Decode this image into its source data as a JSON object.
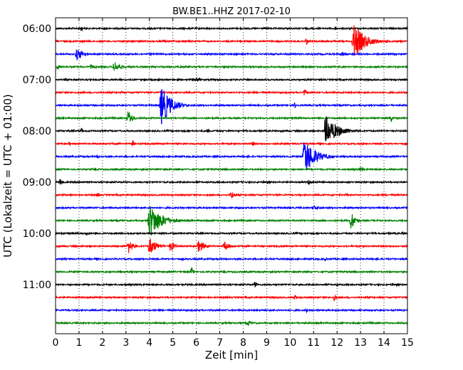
{
  "chart_data": {
    "type": "line",
    "title": "BW.BE1..HHZ 2017-02-10",
    "xlabel": "Zeit  [min]",
    "ylabel": "UTC (Lokalzeit = UTC + 01:00)",
    "xlim": [
      0,
      15
    ],
    "x_ticks": [
      "0",
      "1",
      "2",
      "3",
      "4",
      "5",
      "6",
      "7",
      "8",
      "9",
      "10",
      "11",
      "12",
      "13",
      "14",
      "15"
    ],
    "y_tick_labels": [
      "06:00",
      "07:00",
      "08:00",
      "09:00",
      "10:00",
      "11:00"
    ],
    "y_tick_trace_index": [
      0,
      4,
      8,
      12,
      16,
      20
    ],
    "trace_start": "06:00",
    "trace_interval_min": 15,
    "grid": "vertical dotted",
    "colors": [
      "#000000",
      "#ff0000",
      "#0000ff",
      "#008000"
    ],
    "traces": [
      {
        "start": "06:00",
        "color": "#000000",
        "events": [
          {
            "t": 1.1,
            "amp": 5,
            "dur": 0.15
          },
          {
            "t": 11.9,
            "amp": 4,
            "dur": 0.2
          }
        ]
      },
      {
        "start": "06:15",
        "color": "#ff0000",
        "events": [
          {
            "t": 12.7,
            "amp": 26,
            "dur": 1.4
          },
          {
            "t": 10.7,
            "amp": 6,
            "dur": 0.15
          },
          {
            "t": 4.6,
            "amp": 3,
            "dur": 0.1
          }
        ]
      },
      {
        "start": "06:30",
        "color": "#0000ff",
        "events": [
          {
            "t": 0.9,
            "amp": 9,
            "dur": 0.9
          },
          {
            "t": 12.2,
            "amp": 4,
            "dur": 0.6
          }
        ]
      },
      {
        "start": "06:45",
        "color": "#008000",
        "events": [
          {
            "t": 0.1,
            "amp": 5,
            "dur": 0.2
          },
          {
            "t": 2.5,
            "amp": 9,
            "dur": 0.7
          },
          {
            "t": 1.5,
            "amp": 3,
            "dur": 0.8
          }
        ]
      },
      {
        "start": "07:00",
        "color": "#000000",
        "events": [
          {
            "t": 6.0,
            "amp": 4,
            "dur": 0.5
          },
          {
            "t": 3.8,
            "amp": 3,
            "dur": 0.3
          }
        ]
      },
      {
        "start": "07:15",
        "color": "#ff0000",
        "events": [
          {
            "t": 10.6,
            "amp": 5,
            "dur": 0.35
          },
          {
            "t": 2.8,
            "amp": 2,
            "dur": 0.6
          }
        ]
      },
      {
        "start": "07:30",
        "color": "#0000ff",
        "events": [
          {
            "t": 4.5,
            "amp": 30,
            "dur": 1.2
          },
          {
            "t": 10.2,
            "amp": 4,
            "dur": 0.3
          }
        ]
      },
      {
        "start": "07:45",
        "color": "#008000",
        "events": [
          {
            "t": 3.1,
            "amp": 12,
            "dur": 0.5
          },
          {
            "t": 14.3,
            "amp": 7,
            "dur": 0.2
          }
        ]
      },
      {
        "start": "08:00",
        "color": "#000000",
        "events": [
          {
            "t": 11.5,
            "amp": 22,
            "dur": 1.5
          },
          {
            "t": 1.1,
            "amp": 5,
            "dur": 0.2
          },
          {
            "t": 6.5,
            "amp": 4,
            "dur": 0.2
          }
        ]
      },
      {
        "start": "08:15",
        "color": "#ff0000",
        "events": [
          {
            "t": 3.3,
            "amp": 5,
            "dur": 0.2
          },
          {
            "t": 8.4,
            "amp": 4,
            "dur": 0.2
          },
          {
            "t": 0.6,
            "amp": 3,
            "dur": 0.2
          }
        ]
      },
      {
        "start": "08:30",
        "color": "#0000ff",
        "events": [
          {
            "t": 10.6,
            "amp": 28,
            "dur": 1.3
          },
          {
            "t": 1.8,
            "amp": 3,
            "dur": 0.2
          }
        ]
      },
      {
        "start": "08:45",
        "color": "#008000",
        "events": [
          {
            "t": 13.0,
            "amp": 4,
            "dur": 0.4
          }
        ]
      },
      {
        "start": "09:00",
        "color": "#000000",
        "events": [
          {
            "t": 0.2,
            "amp": 6,
            "dur": 0.3
          },
          {
            "t": 10.8,
            "amp": 4,
            "dur": 0.3
          },
          {
            "t": 1.0,
            "amp": 3,
            "dur": 0.1
          }
        ]
      },
      {
        "start": "09:15",
        "color": "#ff0000",
        "events": [
          {
            "t": 7.5,
            "amp": 7,
            "dur": 0.3
          },
          {
            "t": 1.8,
            "amp": 3,
            "dur": 0.4
          },
          {
            "t": 12.4,
            "amp": 3,
            "dur": 0.2
          }
        ]
      },
      {
        "start": "09:30",
        "color": "#0000ff",
        "events": [
          {
            "t": 11.0,
            "amp": 4,
            "dur": 0.7
          },
          {
            "t": 7.8,
            "amp": 2,
            "dur": 0.4
          }
        ]
      },
      {
        "start": "09:45",
        "color": "#008000",
        "events": [
          {
            "t": 4.0,
            "amp": 26,
            "dur": 1.4
          },
          {
            "t": 12.6,
            "amp": 14,
            "dur": 0.5
          }
        ]
      },
      {
        "start": "10:00",
        "color": "#000000",
        "events": [
          {
            "t": 1.3,
            "amp": 3,
            "dur": 0.5
          },
          {
            "t": 14.8,
            "amp": 3,
            "dur": 0.2
          }
        ]
      },
      {
        "start": "10:15",
        "color": "#ff0000",
        "events": [
          {
            "t": 3.1,
            "amp": 11,
            "dur": 0.6
          },
          {
            "t": 4.0,
            "amp": 13,
            "dur": 0.9
          },
          {
            "t": 4.9,
            "amp": 9,
            "dur": 0.5
          },
          {
            "t": 6.1,
            "amp": 10,
            "dur": 0.7
          },
          {
            "t": 7.2,
            "amp": 8,
            "dur": 0.6
          }
        ]
      },
      {
        "start": "10:30",
        "color": "#0000ff",
        "events": [
          {
            "t": 11.5,
            "amp": 3,
            "dur": 0.2
          }
        ]
      },
      {
        "start": "10:45",
        "color": "#008000",
        "events": [
          {
            "t": 5.8,
            "amp": 7,
            "dur": 0.2
          },
          {
            "t": 3.2,
            "amp": 4,
            "dur": 0.2
          }
        ]
      },
      {
        "start": "11:00",
        "color": "#000000",
        "events": [
          {
            "t": 8.5,
            "amp": 5,
            "dur": 0.3
          },
          {
            "t": 12.0,
            "amp": 3,
            "dur": 0.2
          }
        ]
      },
      {
        "start": "11:15",
        "color": "#ff0000",
        "events": [
          {
            "t": 11.9,
            "amp": 7,
            "dur": 0.2
          },
          {
            "t": 10.2,
            "amp": 5,
            "dur": 0.2
          }
        ]
      },
      {
        "start": "11:30",
        "color": "#0000ff",
        "events": [
          {
            "t": 10.7,
            "amp": 3,
            "dur": 0.2
          }
        ]
      },
      {
        "start": "11:45",
        "color": "#008000",
        "events": [
          {
            "t": 8.2,
            "amp": 5,
            "dur": 0.4
          }
        ]
      }
    ]
  }
}
